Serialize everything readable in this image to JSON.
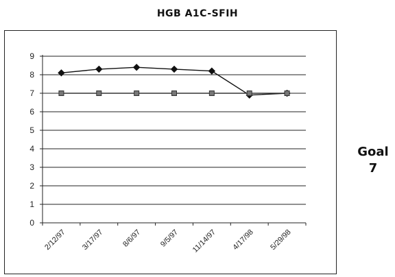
{
  "chart_data": {
    "type": "line",
    "title": "HGB A1C-SFIH",
    "categories": [
      "2/12/97",
      "3/17/97",
      "8/6/97",
      "9/5/97",
      "11/14/97",
      "4/17/98",
      "5/29/98"
    ],
    "series": [
      {
        "values": [
          8.1,
          8.3,
          8.4,
          8.3,
          8.2,
          6.9,
          7.0
        ],
        "color": "#111111",
        "marker": "diamond"
      },
      {
        "values": [
          7,
          7,
          7,
          7,
          7,
          7,
          7
        ],
        "color": "#333333",
        "marker": "square"
      }
    ],
    "ylim": [
      0,
      9
    ],
    "yticks": [
      0,
      1,
      2,
      3,
      4,
      5,
      6,
      7,
      8,
      9
    ],
    "grid": true
  },
  "side_label": {
    "line1": "Goal",
    "line2": "7"
  }
}
